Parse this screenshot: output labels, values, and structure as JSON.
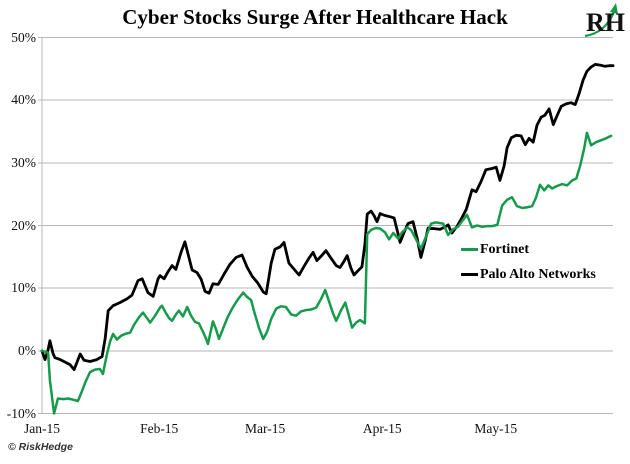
{
  "header": {
    "title": "Cyber Stocks Surge After Healthcare Hack",
    "logo_text": "RH"
  },
  "footer": {
    "copyright": "© RiskHedge"
  },
  "chart_data": {
    "type": "line",
    "title": "Cyber Stocks Surge After Healthcare Hack",
    "xlabel": "",
    "ylabel": "",
    "x_unit": "days since 2015-01-01",
    "xlim": [
      0,
      151
    ],
    "ylim": [
      -10,
      50
    ],
    "grid": "horizontal",
    "legend_position": "inside-right-middle",
    "y_ticks": [
      {
        "value": 50,
        "label": "50%"
      },
      {
        "value": 40,
        "label": "40%"
      },
      {
        "value": 30,
        "label": "30%"
      },
      {
        "value": 20,
        "label": "20%"
      },
      {
        "value": 10,
        "label": "10%"
      },
      {
        "value": 0,
        "label": "0%"
      },
      {
        "value": -10,
        "label": "-10%"
      }
    ],
    "x_ticks": [
      {
        "day": 0,
        "label": "Jan-15"
      },
      {
        "day": 31,
        "label": "Feb-15"
      },
      {
        "day": 59,
        "label": "Mar-15"
      },
      {
        "day": 90,
        "label": "Apr-15"
      },
      {
        "day": 120,
        "label": "May-15"
      }
    ],
    "series": [
      {
        "name": "Fortinet",
        "color": "#169a4c",
        "points": [
          [
            0,
            0
          ],
          [
            1.1,
            -0.2
          ],
          [
            1.6,
            -0.3
          ],
          [
            2.1,
            -4.7
          ],
          [
            3.2,
            -10.0
          ],
          [
            4.2,
            -7.6
          ],
          [
            5.6,
            -7.7
          ],
          [
            6.9,
            -7.6
          ],
          [
            8.2,
            -7.8
          ],
          [
            9.5,
            -8.0
          ],
          [
            10.6,
            -6.4
          ],
          [
            11.4,
            -5.1
          ],
          [
            12.7,
            -3.4
          ],
          [
            14.0,
            -3.0
          ],
          [
            15.3,
            -2.9
          ],
          [
            16.1,
            -3.7
          ],
          [
            17.2,
            -0.5
          ],
          [
            18.0,
            1.5
          ],
          [
            18.8,
            2.7
          ],
          [
            19.8,
            1.8
          ],
          [
            20.9,
            2.4
          ],
          [
            22.0,
            2.7
          ],
          [
            23.3,
            2.9
          ],
          [
            24.3,
            4.1
          ],
          [
            25.7,
            5.4
          ],
          [
            26.7,
            6.1
          ],
          [
            27.8,
            5.2
          ],
          [
            28.6,
            4.5
          ],
          [
            29.9,
            5.6
          ],
          [
            31.2,
            6.9
          ],
          [
            31.7,
            7.2
          ],
          [
            32.8,
            6.0
          ],
          [
            33.6,
            5.2
          ],
          [
            34.4,
            4.8
          ],
          [
            35.4,
            5.8
          ],
          [
            36.2,
            6.4
          ],
          [
            37.3,
            5.5
          ],
          [
            38.4,
            7.0
          ],
          [
            39.4,
            5.6
          ],
          [
            40.5,
            4.6
          ],
          [
            41.5,
            4.4
          ],
          [
            42.6,
            3.0
          ],
          [
            43.4,
            1.9
          ],
          [
            43.9,
            1.1
          ],
          [
            45.2,
            4.7
          ],
          [
            46.0,
            3.5
          ],
          [
            46.8,
            1.9
          ],
          [
            48.1,
            3.9
          ],
          [
            49.2,
            5.5
          ],
          [
            50.5,
            7.0
          ],
          [
            51.8,
            8.2
          ],
          [
            53.2,
            9.3
          ],
          [
            54.2,
            8.6
          ],
          [
            55.3,
            8.1
          ],
          [
            56.1,
            6.3
          ],
          [
            57.4,
            3.6
          ],
          [
            58.5,
            1.9
          ],
          [
            59.5,
            3.0
          ],
          [
            60.6,
            5.1
          ],
          [
            61.9,
            6.7
          ],
          [
            63.2,
            7.1
          ],
          [
            64.5,
            7.0
          ],
          [
            65.9,
            5.8
          ],
          [
            67.2,
            5.6
          ],
          [
            68.5,
            6.3
          ],
          [
            69.8,
            6.5
          ],
          [
            71.2,
            6.6
          ],
          [
            72.5,
            6.9
          ],
          [
            73.8,
            8.3
          ],
          [
            74.9,
            9.7
          ],
          [
            75.9,
            7.9
          ],
          [
            77.0,
            5.9
          ],
          [
            77.8,
            4.8
          ],
          [
            79.1,
            6.5
          ],
          [
            80.2,
            7.7
          ],
          [
            81.2,
            5.5
          ],
          [
            82.0,
            3.7
          ],
          [
            83.1,
            4.5
          ],
          [
            84.1,
            4.9
          ],
          [
            85.4,
            4.4
          ],
          [
            86.0,
            18.6
          ],
          [
            87.0,
            19.3
          ],
          [
            88.3,
            19.6
          ],
          [
            89.4,
            19.5
          ],
          [
            90.7,
            18.9
          ],
          [
            91.8,
            17.8
          ],
          [
            92.9,
            18.8
          ],
          [
            94.2,
            17.9
          ],
          [
            95.2,
            18.9
          ],
          [
            96.6,
            19.7
          ],
          [
            97.6,
            19.3
          ],
          [
            98.9,
            17.8
          ],
          [
            100.2,
            16.3
          ],
          [
            101.6,
            18.3
          ],
          [
            102.9,
            20.3
          ],
          [
            104.2,
            20.5
          ],
          [
            106.1,
            20.3
          ],
          [
            107.4,
            18.5
          ],
          [
            108.7,
            19.4
          ],
          [
            110.0,
            19.8
          ],
          [
            111.1,
            20.7
          ],
          [
            112.4,
            21.7
          ],
          [
            113.7,
            19.7
          ],
          [
            115.1,
            20.0
          ],
          [
            116.4,
            19.8
          ],
          [
            117.7,
            19.9
          ],
          [
            119.0,
            19.9
          ],
          [
            120.4,
            20.1
          ],
          [
            121.7,
            23.2
          ],
          [
            123.0,
            24.1
          ],
          [
            124.3,
            24.5
          ],
          [
            125.6,
            23.1
          ],
          [
            127.0,
            22.8
          ],
          [
            128.3,
            22.9
          ],
          [
            129.6,
            23.1
          ],
          [
            130.6,
            24.4
          ],
          [
            131.7,
            26.5
          ],
          [
            132.8,
            25.6
          ],
          [
            133.9,
            26.4
          ],
          [
            134.9,
            25.9
          ],
          [
            136.2,
            26.3
          ],
          [
            137.6,
            26.6
          ],
          [
            138.9,
            26.4
          ],
          [
            140.2,
            27.2
          ],
          [
            141.3,
            27.5
          ],
          [
            142.3,
            29.5
          ],
          [
            143.4,
            32.4
          ],
          [
            144.1,
            34.8
          ],
          [
            145.2,
            32.8
          ],
          [
            146.5,
            33.3
          ],
          [
            147.8,
            33.6
          ],
          [
            149.1,
            33.9
          ],
          [
            150.5,
            34.3
          ]
        ]
      },
      {
        "name": "Palo Alto Networks",
        "color": "#000000",
        "points": [
          [
            0,
            0
          ],
          [
            0.8,
            -1.4
          ],
          [
            1.6,
            0.2
          ],
          [
            2.1,
            1.6
          ],
          [
            2.9,
            -0.4
          ],
          [
            3.4,
            -1.1
          ],
          [
            4.8,
            -1.4
          ],
          [
            6.1,
            -1.8
          ],
          [
            7.4,
            -2.2
          ],
          [
            8.5,
            -3.0
          ],
          [
            10.1,
            -0.5
          ],
          [
            11.1,
            -1.5
          ],
          [
            12.7,
            -1.7
          ],
          [
            14.5,
            -1.4
          ],
          [
            15.9,
            -0.9
          ],
          [
            16.7,
            2.0
          ],
          [
            17.5,
            6.4
          ],
          [
            18.8,
            7.2
          ],
          [
            20.6,
            7.7
          ],
          [
            22.5,
            8.3
          ],
          [
            23.8,
            8.9
          ],
          [
            25.4,
            11.2
          ],
          [
            26.5,
            11.5
          ],
          [
            28.0,
            9.3
          ],
          [
            29.4,
            8.7
          ],
          [
            30.7,
            11.5
          ],
          [
            31.2,
            12.0
          ],
          [
            32.3,
            11.5
          ],
          [
            33.3,
            12.6
          ],
          [
            34.4,
            13.6
          ],
          [
            35.4,
            13.0
          ],
          [
            36.8,
            15.8
          ],
          [
            37.8,
            17.4
          ],
          [
            38.9,
            14.8
          ],
          [
            39.7,
            12.9
          ],
          [
            41.0,
            12.5
          ],
          [
            42.1,
            11.4
          ],
          [
            43.1,
            9.5
          ],
          [
            44.2,
            9.2
          ],
          [
            45.2,
            10.7
          ],
          [
            46.6,
            10.6
          ],
          [
            48.1,
            12.2
          ],
          [
            49.7,
            13.8
          ],
          [
            51.3,
            14.9
          ],
          [
            52.9,
            15.3
          ],
          [
            54.2,
            13.4
          ],
          [
            55.6,
            11.9
          ],
          [
            57.1,
            10.8
          ],
          [
            58.5,
            9.4
          ],
          [
            59.3,
            9.1
          ],
          [
            60.6,
            14.0
          ],
          [
            61.6,
            16.2
          ],
          [
            63.0,
            16.6
          ],
          [
            64.0,
            17.3
          ],
          [
            65.3,
            14.0
          ],
          [
            66.7,
            13.0
          ],
          [
            68.0,
            12.1
          ],
          [
            69.3,
            13.5
          ],
          [
            70.6,
            14.8
          ],
          [
            71.7,
            15.7
          ],
          [
            72.7,
            14.4
          ],
          [
            74.1,
            15.3
          ],
          [
            75.1,
            16.0
          ],
          [
            76.4,
            14.8
          ],
          [
            77.8,
            13.6
          ],
          [
            78.8,
            13.3
          ],
          [
            79.9,
            14.3
          ],
          [
            80.7,
            15.2
          ],
          [
            81.7,
            13.2
          ],
          [
            82.5,
            12.1
          ],
          [
            83.6,
            12.8
          ],
          [
            84.6,
            13.4
          ],
          [
            85.4,
            17.0
          ],
          [
            86.0,
            21.8
          ],
          [
            87.0,
            22.3
          ],
          [
            87.8,
            21.6
          ],
          [
            88.6,
            20.6
          ],
          [
            89.4,
            21.9
          ],
          [
            90.7,
            21.6
          ],
          [
            92.0,
            21.4
          ],
          [
            93.1,
            21.2
          ],
          [
            94.2,
            18.6
          ],
          [
            94.7,
            17.3
          ],
          [
            95.8,
            19.0
          ],
          [
            96.8,
            20.3
          ],
          [
            98.1,
            20.6
          ],
          [
            99.2,
            18.0
          ],
          [
            100.2,
            14.9
          ],
          [
            101.3,
            17.5
          ],
          [
            102.1,
            19.6
          ],
          [
            103.7,
            19.5
          ],
          [
            105.3,
            19.4
          ],
          [
            106.6,
            19.8
          ],
          [
            107.4,
            20.1
          ],
          [
            108.4,
            18.8
          ],
          [
            109.8,
            19.9
          ],
          [
            111.1,
            21.3
          ],
          [
            112.2,
            22.6
          ],
          [
            113.7,
            25.7
          ],
          [
            114.8,
            25.4
          ],
          [
            116.1,
            27.0
          ],
          [
            117.4,
            28.9
          ],
          [
            119.0,
            29.1
          ],
          [
            120.1,
            29.3
          ],
          [
            121.1,
            27.2
          ],
          [
            122.2,
            29.5
          ],
          [
            123.0,
            32.4
          ],
          [
            124.1,
            34.0
          ],
          [
            125.4,
            34.4
          ],
          [
            126.7,
            34.3
          ],
          [
            127.8,
            32.9
          ],
          [
            128.8,
            33.9
          ],
          [
            129.9,
            33.3
          ],
          [
            130.9,
            36.0
          ],
          [
            132.0,
            37.3
          ],
          [
            133.0,
            37.6
          ],
          [
            134.1,
            38.6
          ],
          [
            135.2,
            36.1
          ],
          [
            136.2,
            37.5
          ],
          [
            137.3,
            39.0
          ],
          [
            138.6,
            39.4
          ],
          [
            139.9,
            39.6
          ],
          [
            141.0,
            39.3
          ],
          [
            142.0,
            41.0
          ],
          [
            143.1,
            43.2
          ],
          [
            144.1,
            44.6
          ],
          [
            145.2,
            45.3
          ],
          [
            146.3,
            45.7
          ],
          [
            147.6,
            45.6
          ],
          [
            148.9,
            45.4
          ],
          [
            150.0,
            45.5
          ],
          [
            151.0,
            45.5
          ]
        ]
      }
    ]
  }
}
